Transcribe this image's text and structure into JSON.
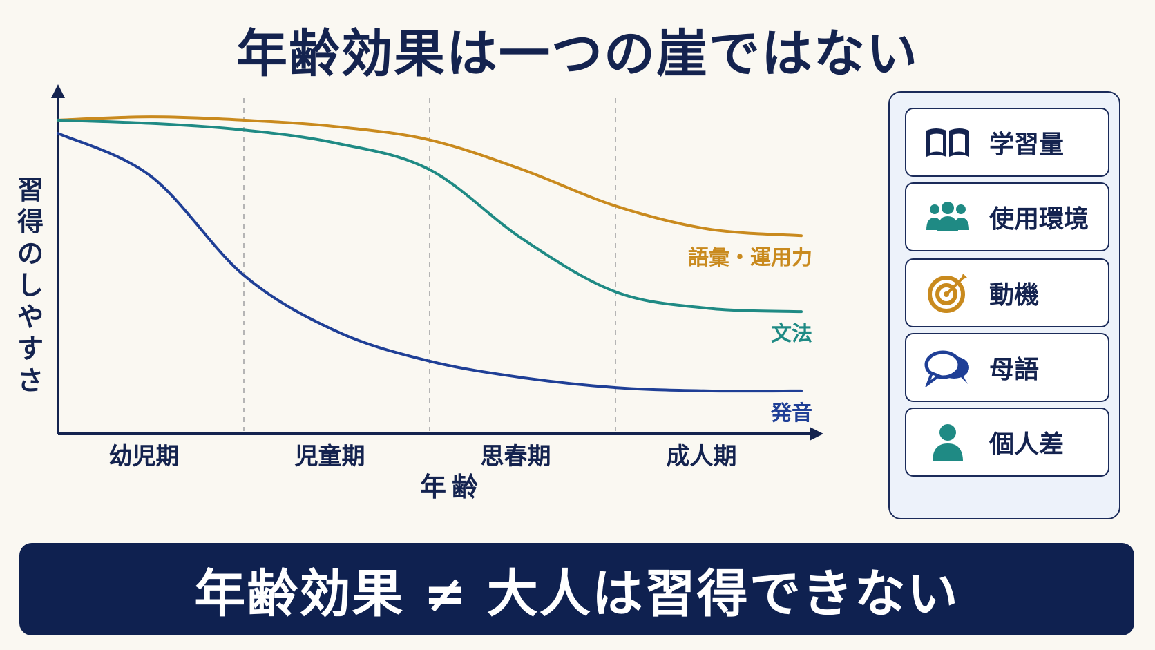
{
  "title": "年齢効果は一つの崖ではない",
  "chart_data": {
    "type": "line",
    "title": "年齢効果は一つの崖ではない",
    "xlabel": "年齢",
    "ylabel": "習得のしやすさ",
    "categories": [
      "幼児期",
      "児童期",
      "思春期",
      "成人期"
    ],
    "x_range": [
      0,
      4
    ],
    "ylim": [
      0,
      10
    ],
    "grid": "vertical dashed dividers between periods",
    "series": [
      {
        "name": "語彙・運用力",
        "color": "#c98a1e",
        "x": [
          0,
          0.5,
          1,
          1.5,
          2,
          2.5,
          3,
          3.5,
          4
        ],
        "y": [
          9.5,
          9.6,
          9.5,
          9.3,
          8.9,
          8.0,
          6.9,
          6.2,
          6.0
        ]
      },
      {
        "name": "文法",
        "color": "#1f8a84",
        "x": [
          0,
          0.5,
          1,
          1.5,
          2,
          2.5,
          3,
          3.5,
          4
        ],
        "y": [
          9.5,
          9.4,
          9.2,
          8.8,
          8.0,
          5.9,
          4.3,
          3.8,
          3.7
        ]
      },
      {
        "name": "発音",
        "color": "#1f3f96",
        "x": [
          0,
          0.5,
          1,
          1.5,
          2,
          2.5,
          3,
          3.5,
          4
        ],
        "y": [
          9.1,
          7.8,
          4.8,
          3.1,
          2.2,
          1.7,
          1.4,
          1.3,
          1.3
        ]
      }
    ]
  },
  "factors": [
    {
      "icon": "book-icon",
      "label": "学習量",
      "color": "#14234f"
    },
    {
      "icon": "people-icon",
      "label": "使用環境",
      "color": "#1f8a84"
    },
    {
      "icon": "target-icon",
      "label": "動機",
      "color": "#c98a1e"
    },
    {
      "icon": "speech-bubbles-icon",
      "label": "母語",
      "color": "#1f3f96"
    },
    {
      "icon": "person-icon",
      "label": "個人差",
      "color": "#1f8a84"
    }
  ],
  "banner": "年齢効果 ≠ 大人は習得できない"
}
